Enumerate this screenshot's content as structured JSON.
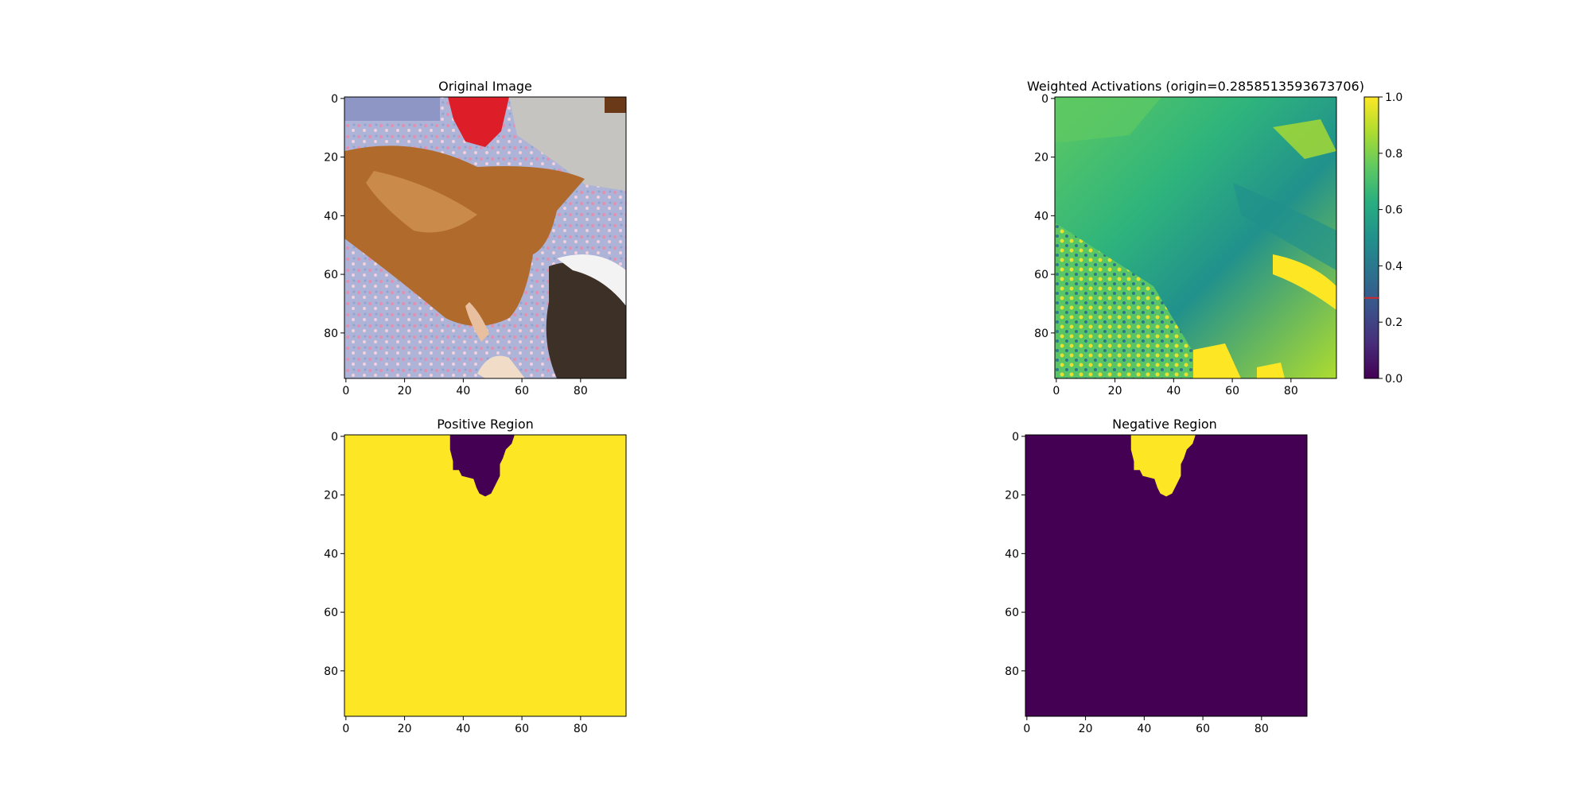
{
  "chart_data": [
    {
      "type": "heatmap",
      "title": "Original Image",
      "xlim": [
        0,
        96
      ],
      "ylim": [
        96,
        0
      ],
      "xticks": [
        0,
        20,
        40,
        60,
        80
      ],
      "yticks": [
        0,
        20,
        40,
        60,
        80
      ],
      "content": "rgb-photo"
    },
    {
      "type": "heatmap",
      "title": "Weighted Activations (origin=0.2858513593673706)",
      "xlim": [
        0,
        96
      ],
      "ylim": [
        96,
        0
      ],
      "xticks": [
        0,
        20,
        40,
        60,
        80
      ],
      "yticks": [
        0,
        20,
        40,
        60,
        80
      ],
      "colormap": "viridis",
      "colorbar": {
        "range": [
          0,
          1
        ],
        "ticks": [
          "0.0",
          "0.2",
          "0.4",
          "0.6",
          "0.8",
          "1.0"
        ],
        "origin_marker": 0.2858513593673706,
        "origin_marker_color": "#d62728"
      }
    },
    {
      "type": "heatmap",
      "title": "Positive Region",
      "xlim": [
        0,
        96
      ],
      "ylim": [
        96,
        0
      ],
      "xticks": [
        0,
        20,
        40,
        60,
        80
      ],
      "yticks": [
        0,
        20,
        40,
        60,
        80
      ],
      "fill_color": "#fde725",
      "region_color": "#440154"
    },
    {
      "type": "heatmap",
      "title": "Negative Region",
      "xlim": [
        0,
        96
      ],
      "ylim": [
        96,
        0
      ],
      "xticks": [
        0,
        20,
        40,
        60,
        80
      ],
      "yticks": [
        0,
        20,
        40,
        60,
        80
      ],
      "fill_color": "#440154",
      "region_color": "#fde725"
    }
  ],
  "region_mask": [
    [
      36,
      0
    ],
    [
      58,
      0
    ],
    [
      57,
      3
    ],
    [
      55,
      5
    ],
    [
      54,
      8
    ],
    [
      53,
      10
    ],
    [
      53,
      14
    ],
    [
      52,
      16
    ],
    [
      51,
      18
    ],
    [
      50,
      20
    ],
    [
      48,
      21
    ],
    [
      46,
      20
    ],
    [
      45,
      18
    ],
    [
      44,
      15
    ],
    [
      40,
      14
    ],
    [
      39,
      12
    ],
    [
      37,
      12
    ],
    [
      37,
      9
    ],
    [
      36,
      5
    ]
  ]
}
